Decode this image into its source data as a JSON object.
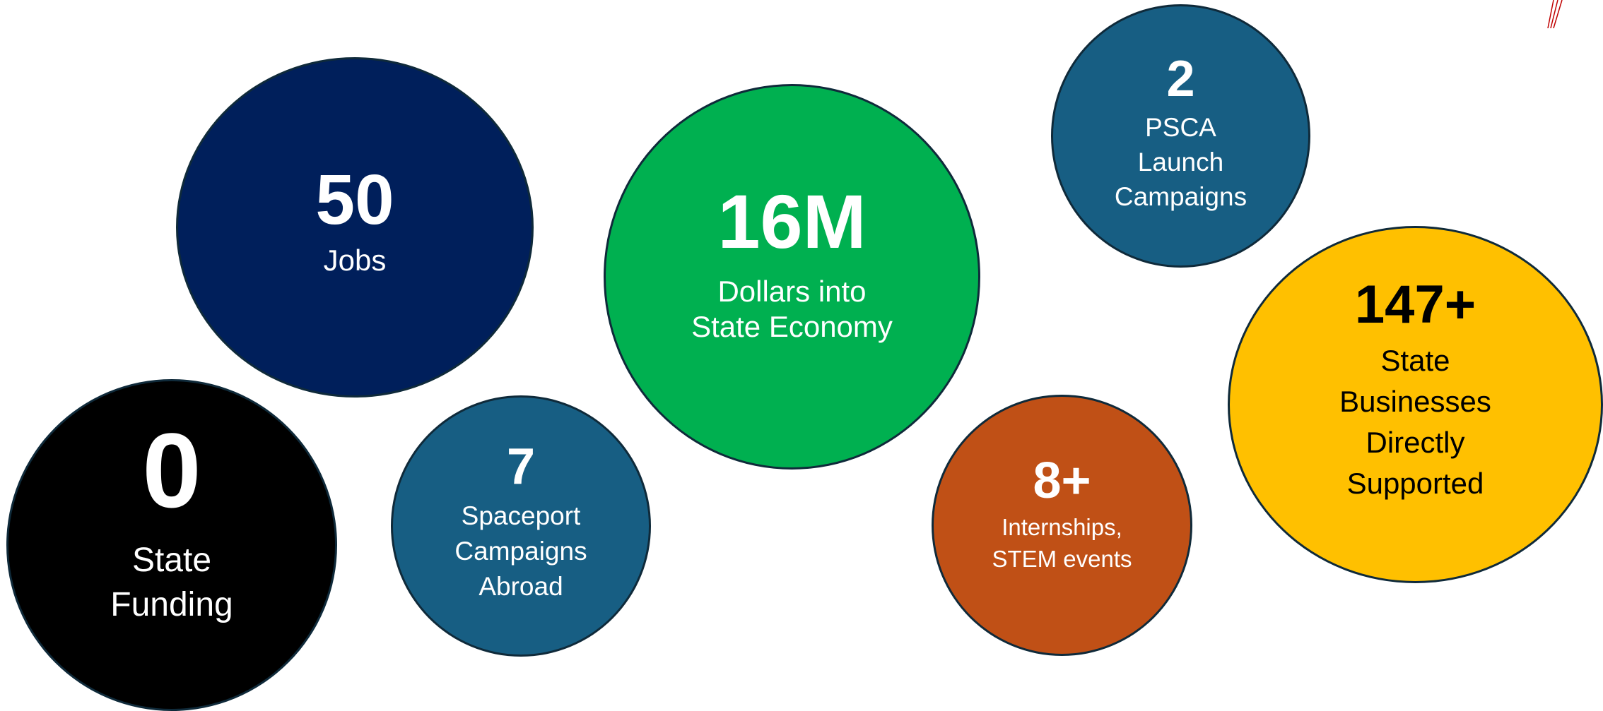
{
  "stats": {
    "jobs": {
      "value": "50",
      "label": "Jobs",
      "color": "#001f5b"
    },
    "economy": {
      "value": "16M",
      "label": "Dollars into\nState Economy",
      "color": "#00b050"
    },
    "psca": {
      "value": "2",
      "label": "PSCA\nLaunch\nCampaigns",
      "color": "#175e83"
    },
    "businesses": {
      "value": "147+",
      "label": "State\nBusinesses\nDirectly\nSupported",
      "color": "#ffc000"
    },
    "funding": {
      "value": "0",
      "label": "State\nFunding",
      "color": "#000000"
    },
    "spaceport": {
      "value": "7",
      "label": "Spaceport\nCampaigns\nAbroad",
      "color": "#175e83"
    },
    "internships": {
      "value": "8+",
      "label": "Internships,\nSTEM events",
      "color": "#c05016"
    }
  },
  "colors": {
    "accent_mark": "#c00000"
  }
}
